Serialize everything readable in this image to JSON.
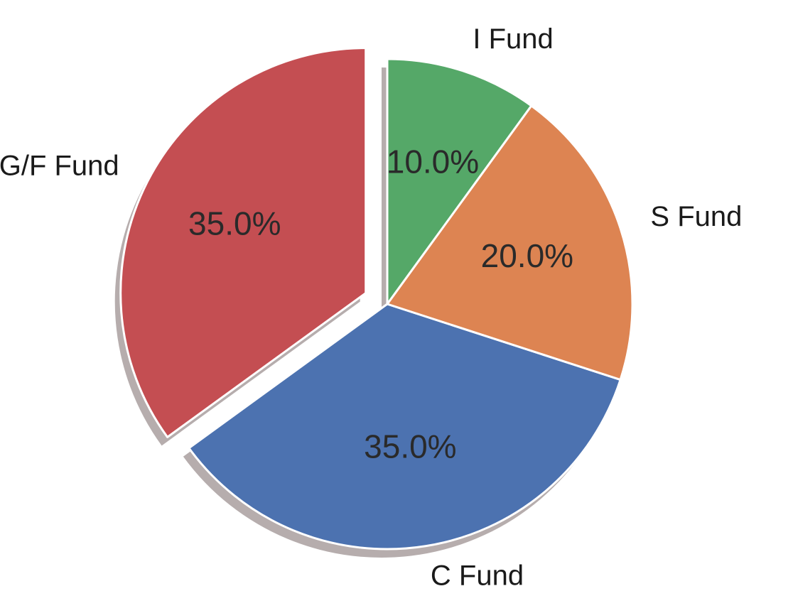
{
  "chart_data": {
    "type": "pie",
    "title": "",
    "slices": [
      {
        "label": "G/F Fund",
        "value": 35.0,
        "pct_label": "35.0%",
        "color": "#c44e52",
        "explode": true
      },
      {
        "label": "C Fund",
        "value": 35.0,
        "pct_label": "35.0%",
        "color": "#4c72b0",
        "explode": false
      },
      {
        "label": "S Fund",
        "value": 20.0,
        "pct_label": "20.0%",
        "color": "#dd8452",
        "explode": false
      },
      {
        "label": "I Fund",
        "value": 10.0,
        "pct_label": "10.0%",
        "color": "#55a868",
        "explode": false
      }
    ],
    "start_angle_deg": 90,
    "direction": "counterclockwise",
    "shadow": true
  }
}
